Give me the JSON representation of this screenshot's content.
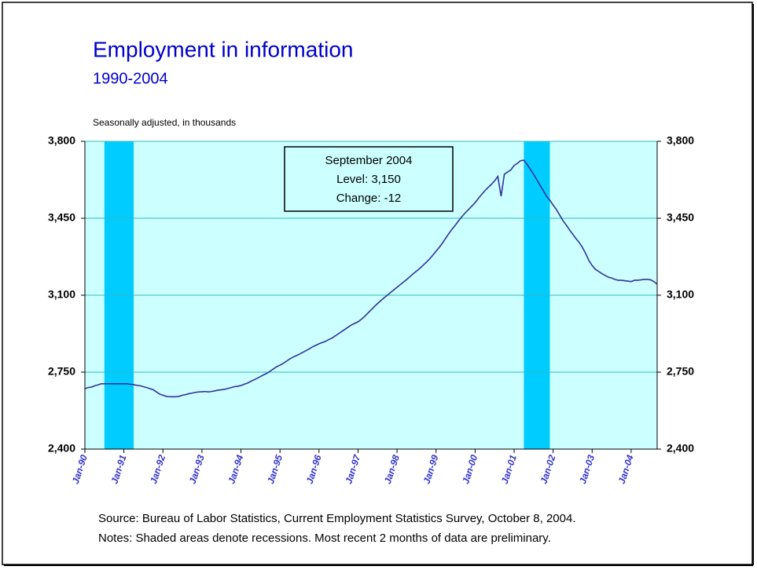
{
  "chart_data": {
    "type": "line",
    "title": "Employment in information",
    "subtitle": "1990-2004",
    "y_label": "Seasonally adjusted, in thousands",
    "annotation": [
      "September 2004",
      "Level: 3,150",
      "Change: -12"
    ],
    "source": "Source:  Bureau of Labor Statistics, Current Employment Statistics Survey, October 8, 2004.",
    "notes": "Notes:  Shaded areas denote recessions. Most recent 2 months of data are preliminary.",
    "recessions": [
      [
        6,
        15
      ],
      [
        135,
        143
      ]
    ],
    "recession_color": "#00ccff",
    "background": "#ccffff",
    "grid": true,
    "ylim": [
      2400,
      3800
    ],
    "yticks": [
      {
        "value": 2400,
        "label": "2,400"
      },
      {
        "value": 2750,
        "label": "2,750"
      },
      {
        "value": 3100,
        "label": "3,100"
      },
      {
        "value": 3450,
        "label": "3,450"
      },
      {
        "value": 3800,
        "label": "3,800"
      }
    ],
    "y2lim": [
      2400,
      3800
    ],
    "y2ticks": [
      {
        "value": 2400,
        "label": "2,400"
      },
      {
        "value": 2750,
        "label": "2,750"
      },
      {
        "value": 3100,
        "label": "3,100"
      },
      {
        "value": 3450,
        "label": "3,450"
      },
      {
        "value": 3800,
        "label": "3,800"
      }
    ],
    "categories": [
      "Jan-90",
      null,
      null,
      null,
      null,
      null,
      null,
      null,
      null,
      null,
      null,
      null,
      "Jan-91",
      null,
      null,
      null,
      null,
      null,
      null,
      null,
      null,
      null,
      null,
      null,
      "Jan-92",
      null,
      null,
      null,
      null,
      null,
      null,
      null,
      null,
      null,
      null,
      null,
      "Jan-93",
      null,
      null,
      null,
      null,
      null,
      null,
      null,
      null,
      null,
      null,
      null,
      "Jan-94",
      null,
      null,
      null,
      null,
      null,
      null,
      null,
      null,
      null,
      null,
      null,
      "Jan-95",
      null,
      null,
      null,
      null,
      null,
      null,
      null,
      null,
      null,
      null,
      null,
      "Jan-96",
      null,
      null,
      null,
      null,
      null,
      null,
      null,
      null,
      null,
      null,
      null,
      "Jan-97",
      null,
      null,
      null,
      null,
      null,
      null,
      null,
      null,
      null,
      null,
      null,
      "Jan-98",
      null,
      null,
      null,
      null,
      null,
      null,
      null,
      null,
      null,
      null,
      null,
      "Jan-99",
      null,
      null,
      null,
      null,
      null,
      null,
      null,
      null,
      null,
      null,
      null,
      "Jan-00",
      null,
      null,
      null,
      null,
      null,
      null,
      null,
      null,
      null,
      null,
      null,
      "Jan-01",
      null,
      null,
      null,
      null,
      null,
      null,
      null,
      null,
      null,
      null,
      null,
      "Jan-02",
      null,
      null,
      null,
      null,
      null,
      null,
      null,
      null,
      null,
      null,
      null,
      "Jan-03",
      null,
      null,
      null,
      null,
      null,
      null,
      null,
      null,
      null,
      null,
      null,
      "Jan-04",
      null,
      null,
      null,
      null,
      null,
      null,
      null,
      null
    ],
    "series": [
      {
        "name": "Employment in information",
        "color": "#333399",
        "values": [
          2675,
          2680,
          2682,
          2688,
          2692,
          2697,
          2697,
          2697,
          2697,
          2697,
          2697,
          2697,
          2697,
          2697,
          2695,
          2693,
          2690,
          2688,
          2684,
          2680,
          2675,
          2670,
          2660,
          2650,
          2645,
          2640,
          2638,
          2638,
          2638,
          2640,
          2645,
          2648,
          2652,
          2655,
          2658,
          2660,
          2661,
          2662,
          2660,
          2662,
          2665,
          2668,
          2670,
          2672,
          2676,
          2680,
          2684,
          2686,
          2689,
          2695,
          2700,
          2708,
          2715,
          2722,
          2730,
          2738,
          2745,
          2755,
          2765,
          2775,
          2782,
          2790,
          2800,
          2810,
          2818,
          2825,
          2832,
          2840,
          2848,
          2856,
          2865,
          2872,
          2879,
          2885,
          2890,
          2898,
          2905,
          2915,
          2925,
          2935,
          2945,
          2955,
          2965,
          2972,
          2979,
          2990,
          3003,
          3018,
          3033,
          3048,
          3062,
          3075,
          3088,
          3100,
          3112,
          3124,
          3136,
          3148,
          3160,
          3172,
          3185,
          3198,
          3210,
          3222,
          3236,
          3250,
          3265,
          3282,
          3300,
          3318,
          3338,
          3360,
          3382,
          3402,
          3420,
          3440,
          3458,
          3475,
          3490,
          3505,
          3521,
          3540,
          3558,
          3575,
          3590,
          3604,
          3620,
          3640,
          3550,
          3650,
          3660,
          3670,
          3690,
          3700,
          3712,
          3714,
          3695,
          3672,
          3650,
          3625,
          3600,
          3575,
          3550,
          3532,
          3510,
          3490,
          3465,
          3440,
          3420,
          3398,
          3378,
          3358,
          3340,
          3318,
          3290,
          3258,
          3235,
          3218,
          3208,
          3198,
          3190,
          3182,
          3178,
          3172,
          3168,
          3168,
          3166,
          3164,
          3162,
          3168,
          3168,
          3170,
          3172,
          3172,
          3170,
          3162,
          3150
        ]
      }
    ]
  }
}
